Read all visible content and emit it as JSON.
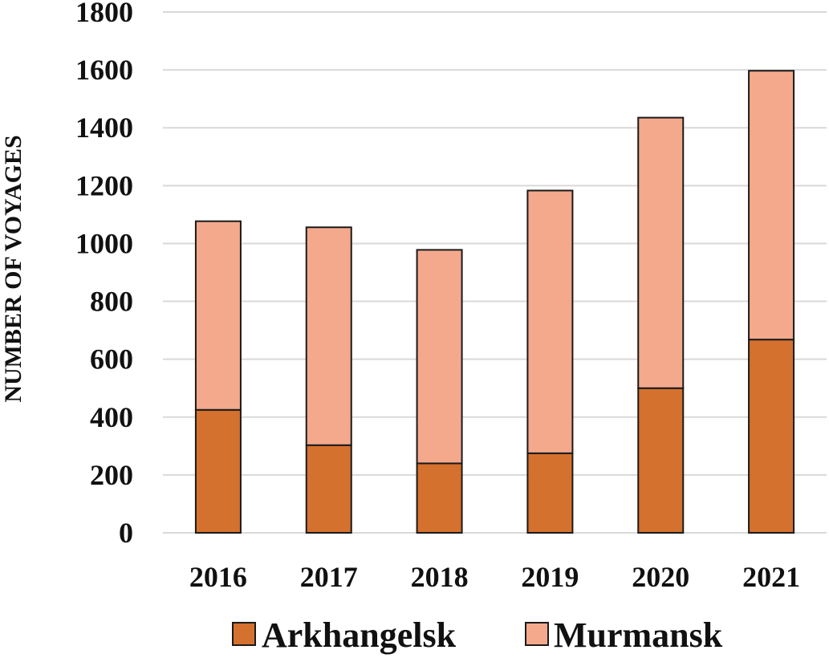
{
  "chart_data": {
    "type": "bar",
    "stacked": true,
    "title": "",
    "xlabel": "",
    "ylabel": "NUMBER OF VOYAGES",
    "categories": [
      "2016",
      "2017",
      "2018",
      "2019",
      "2020",
      "2021"
    ],
    "series": [
      {
        "name": "Arkhangelsk",
        "color": "#d4712e",
        "values": [
          425,
          303,
          240,
          275,
          500,
          668
        ]
      },
      {
        "name": "Murmansk",
        "color": "#f4a98c",
        "values": [
          652,
          753,
          738,
          908,
          935,
          929
        ]
      }
    ],
    "ylim": [
      0,
      1800
    ],
    "yticks": [
      "0",
      "200",
      "400",
      "600",
      "800",
      "1000",
      "1200",
      "1400",
      "1600",
      "1800"
    ],
    "grid": true,
    "legend_position": "bottom"
  }
}
